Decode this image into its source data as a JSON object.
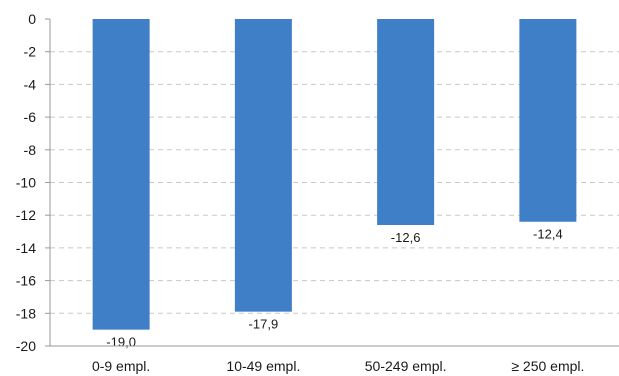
{
  "chart_data": {
    "type": "bar",
    "categories": [
      "0-9 empl.",
      "10-49 empl.",
      "50-249 empl.",
      "≥ 250 empl."
    ],
    "values": [
      -19.0,
      -17.9,
      -12.6,
      -12.4
    ],
    "value_labels": [
      "-19,0",
      "-17,9",
      "-12,6",
      "-12,4"
    ],
    "ylim": [
      -20,
      0
    ],
    "yticks": [
      0,
      -2,
      -4,
      -6,
      -8,
      -10,
      -12,
      -14,
      -16,
      -18,
      -20
    ],
    "grid": true,
    "bar_color": "#3f7fc7",
    "title": "",
    "xlabel": "",
    "ylabel": ""
  }
}
